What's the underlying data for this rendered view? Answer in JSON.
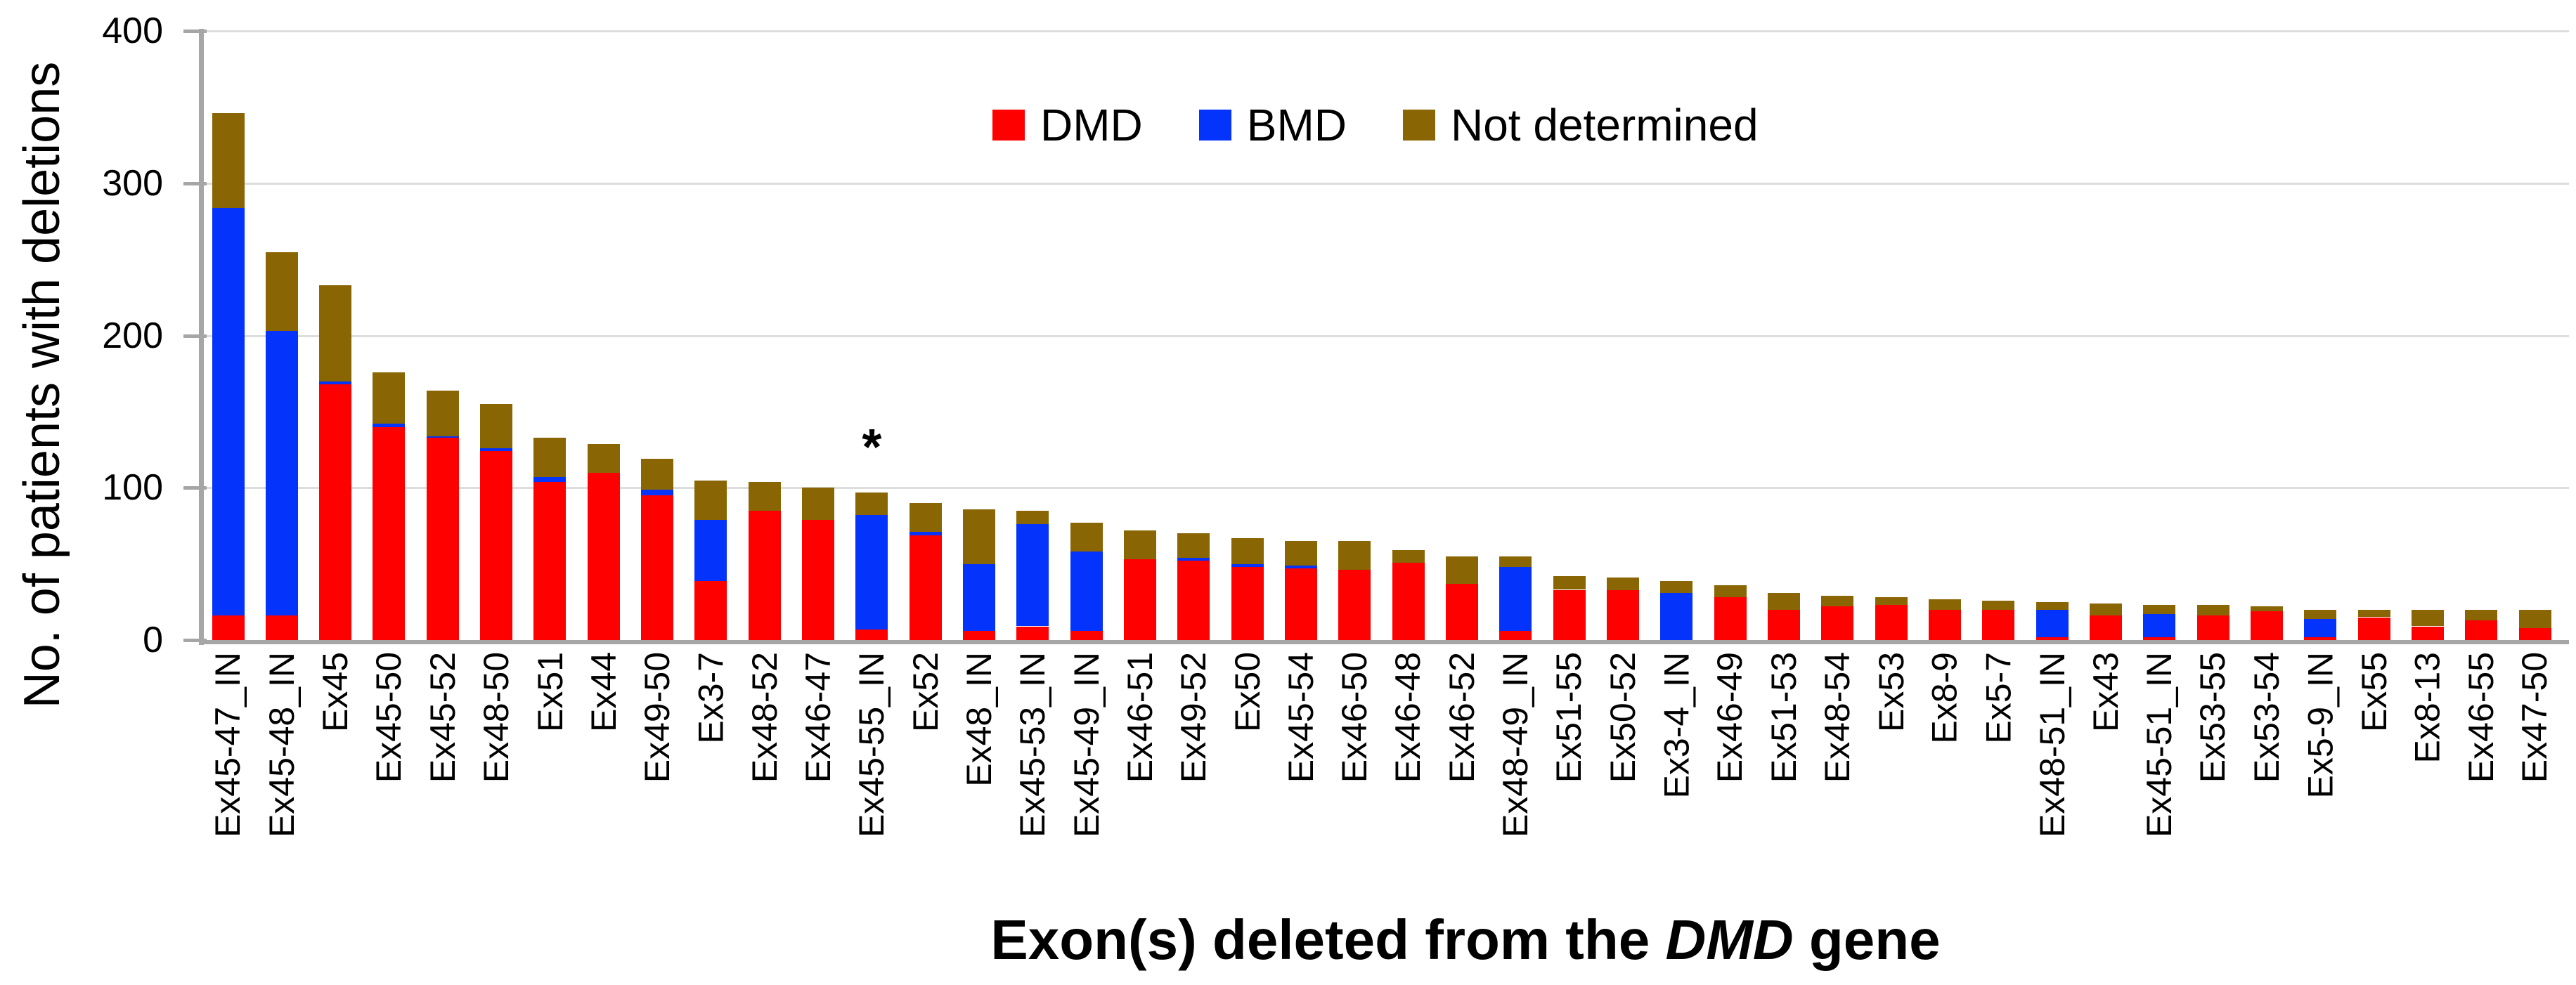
{
  "figure": {
    "y_axis": {
      "title": "No. of patients with deletions",
      "ticks": [
        "0",
        "100",
        "200",
        "300",
        "400"
      ]
    },
    "x_axis": {
      "title_prefix": "Exon(s) deleted from the ",
      "title_gene": "DMD",
      "title_suffix": " gene"
    },
    "legend": {
      "items": [
        "DMD",
        "BMD",
        "Not determined"
      ]
    },
    "annotation_symbol": "*"
  },
  "chart_data": {
    "type": "bar",
    "stacked": true,
    "title": "",
    "xlabel": "Exon(s) deleted from the DMD gene",
    "ylabel": "No. of patients with deletions",
    "ylim": [
      0,
      400
    ],
    "yticks": [
      0,
      100,
      200,
      300,
      400
    ],
    "grid": true,
    "legend_position": "top-center",
    "background": "#ffffff",
    "gridline_color": "#DDDDDD",
    "axis_color": "#A6A6A6",
    "categories": [
      "Ex45-47_IN",
      "Ex45-48_IN",
      "Ex45",
      "Ex45-50",
      "Ex45-52",
      "Ex48-50",
      "Ex51",
      "Ex44",
      "Ex49-50",
      "Ex3-7",
      "Ex48-52",
      "Ex46-47",
      "Ex45-55_IN",
      "Ex52",
      "Ex48_IN",
      "Ex45-53_IN",
      "Ex45-49_IN",
      "Ex46-51",
      "Ex49-52",
      "Ex50",
      "Ex45-54",
      "Ex46-50",
      "Ex46-48",
      "Ex46-52",
      "Ex48-49_IN",
      "Ex51-55",
      "Ex50-52",
      "Ex3-4_IN",
      "Ex46-49",
      "Ex51-53",
      "Ex48-54",
      "Ex53",
      "Ex8-9",
      "Ex5-7",
      "Ex48-51_IN",
      "Ex43",
      "Ex45-51_IN",
      "Ex53-55",
      "Ex53-54",
      "Ex5-9_IN",
      "Ex55",
      "Ex8-13",
      "Ex46-55",
      "Ex47-50"
    ],
    "series": [
      {
        "name": "DMD",
        "color": "#FE0000",
        "values": [
          16,
          16,
          168,
          140,
          133,
          124,
          104,
          110,
          95,
          39,
          85,
          79,
          7,
          69,
          6,
          9,
          6,
          53,
          52,
          48,
          47,
          46,
          51,
          37,
          6,
          33,
          33,
          0,
          28,
          20,
          22,
          23,
          20,
          20,
          2,
          16,
          2,
          16,
          19,
          2,
          15,
          9,
          13,
          8
        ]
      },
      {
        "name": "BMD",
        "color": "#0433FB",
        "values": [
          268,
          187,
          2,
          2,
          1,
          2,
          3,
          0,
          4,
          40,
          0,
          0,
          75,
          2,
          44,
          67,
          52,
          0,
          2,
          2,
          2,
          0,
          0,
          0,
          42,
          0,
          0,
          31,
          0,
          0,
          0,
          0,
          0,
          0,
          18,
          0,
          15,
          0,
          0,
          12,
          0,
          0,
          0,
          0
        ]
      },
      {
        "name": "Not determined",
        "color": "#8A6503",
        "values": [
          62,
          52,
          63,
          34,
          30,
          29,
          26,
          19,
          20,
          26,
          19,
          21,
          15,
          19,
          36,
          9,
          19,
          19,
          16,
          17,
          16,
          19,
          8,
          18,
          7,
          9,
          8,
          8,
          8,
          11,
          7,
          5,
          7,
          6,
          5,
          8,
          6,
          7,
          3,
          6,
          5,
          11,
          7,
          12
        ]
      }
    ],
    "annotations": [
      {
        "text": "*",
        "category": "Ex45-55_IN"
      }
    ]
  }
}
